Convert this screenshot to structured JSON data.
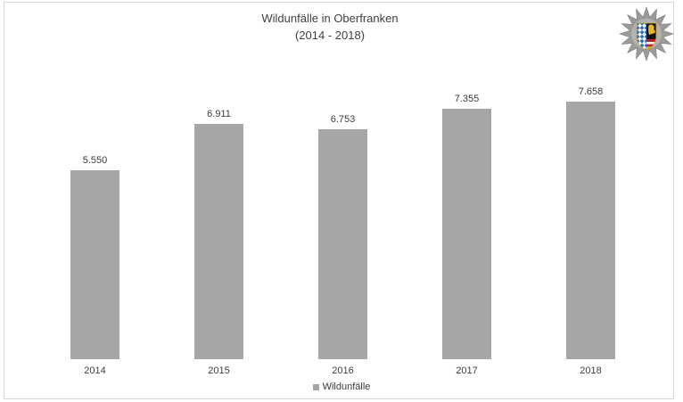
{
  "page": {
    "title_line1": "Wildunfälle in Oberfranken",
    "title_line2": "(2014 - 2018)"
  },
  "logo": {
    "name": "bavarian-police-star",
    "star_color": "#9b9b9b",
    "shield_colors": {
      "bavaria_blue": "#2e6fb5",
      "black": "#151515",
      "gold": "#e8b923",
      "red": "#c22126",
      "white": "#ffffff"
    }
  },
  "legend": {
    "label": "Wildunfälle",
    "marker_color": "#a6a6a6"
  },
  "chart_data": {
    "type": "bar",
    "title": "Wildunfälle in Oberfranken (2014 - 2018)",
    "categories": [
      "2014",
      "2015",
      "2016",
      "2017",
      "2018"
    ],
    "values": [
      5550,
      6911,
      6753,
      7355,
      7658
    ],
    "value_labels": [
      "5.550",
      "6.911",
      "6.753",
      "7.355",
      "7.658"
    ],
    "series_name": "Wildunfälle",
    "bar_color": "#a6a6a6",
    "xlabel": "",
    "ylabel": "",
    "ylim": [
      0,
      8000
    ],
    "grid": false,
    "y_axis_visible": false,
    "data_labels": true,
    "legend_position": "bottom"
  }
}
